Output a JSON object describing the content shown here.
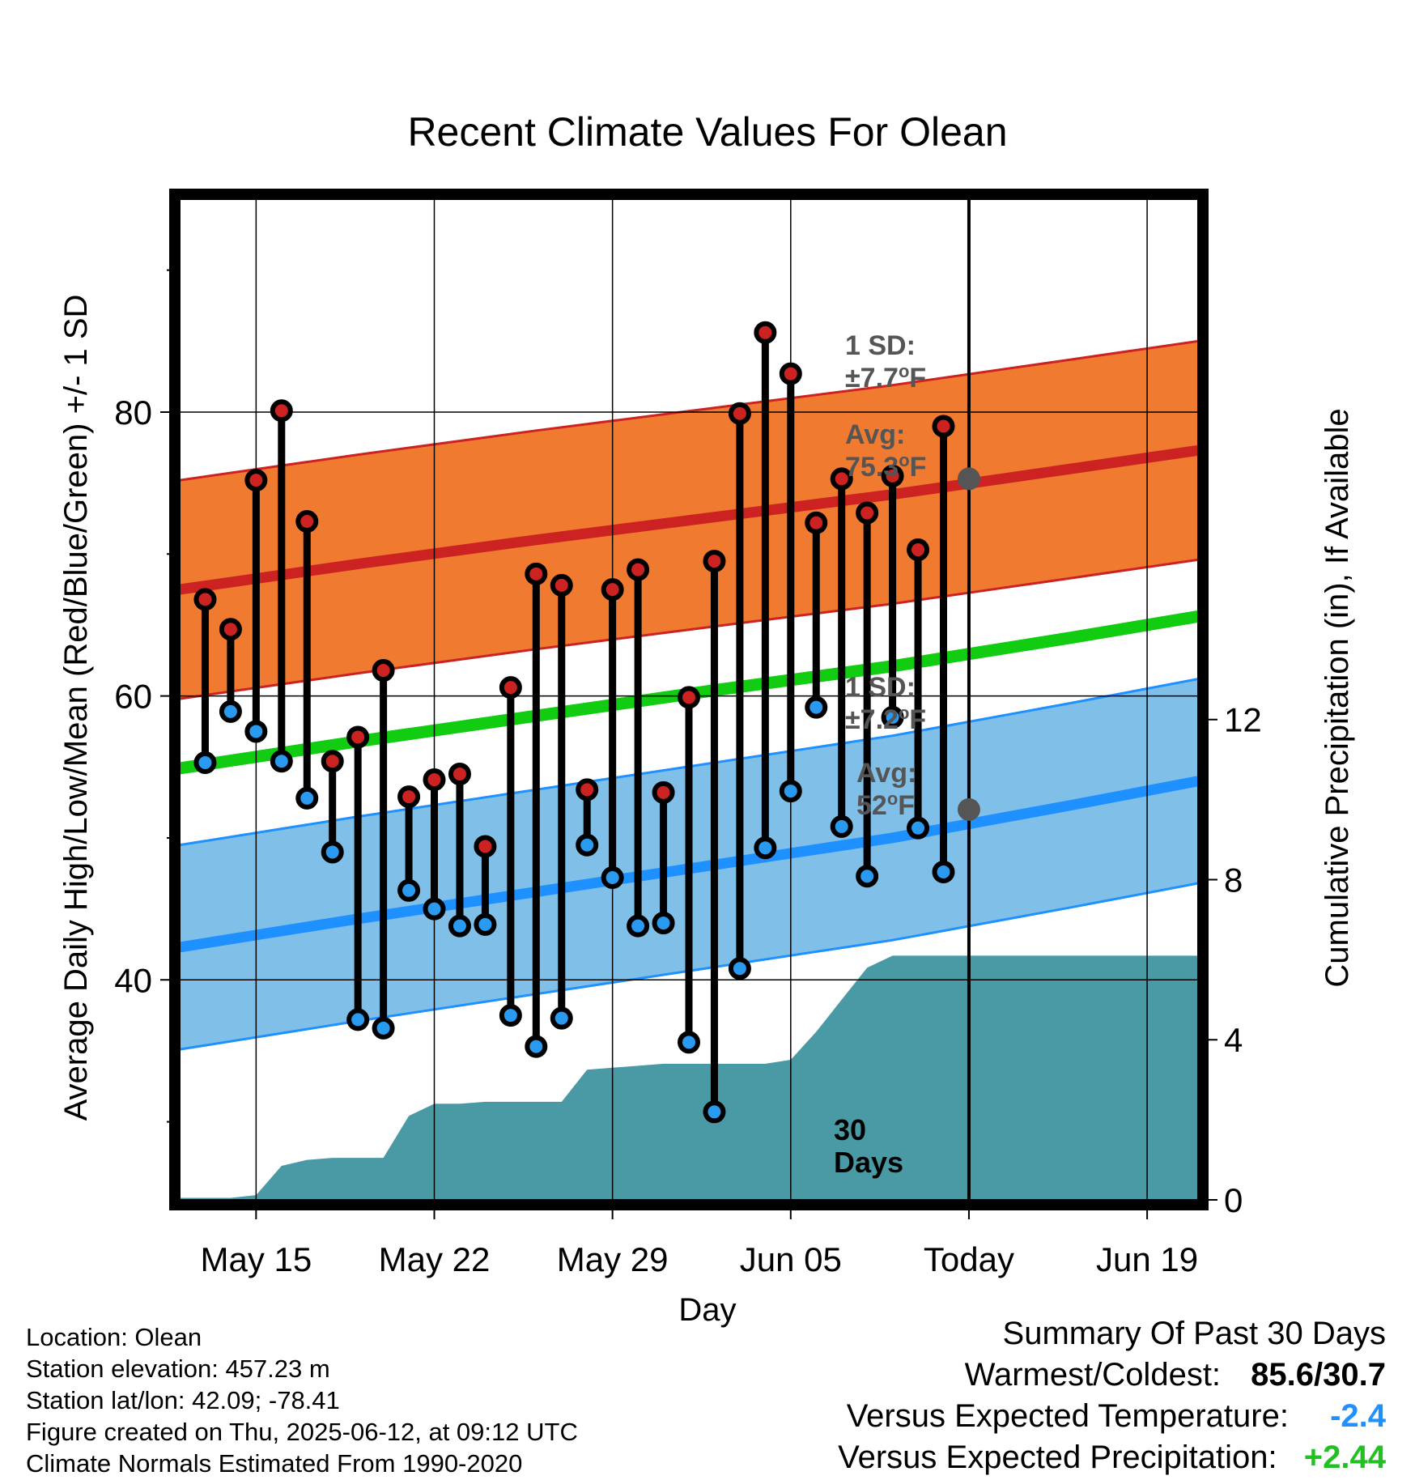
{
  "chart_data": {
    "type": "line",
    "title": "Recent Climate Values For Olean",
    "xlabel": "Day",
    "ylabel": "Average Daily High/Low/Mean (Red/Blue/Green) +/- 1 SD",
    "y2label": "Cumulative Precipitation (in), If Available",
    "x_range": [
      "2025-05-12",
      "2025-06-21"
    ],
    "ylim": [
      24.5,
      95
    ],
    "y2lim": [
      0,
      25
    ],
    "x_ticks": [
      {
        "date": "2025-05-15",
        "label": "May 15"
      },
      {
        "date": "2025-05-22",
        "label": "May 22"
      },
      {
        "date": "2025-05-29",
        "label": "May 29"
      },
      {
        "date": "2025-06-05",
        "label": "Jun 05"
      },
      {
        "date": "2025-06-12",
        "label": "Today"
      },
      {
        "date": "2025-06-19",
        "label": "Jun 19"
      }
    ],
    "y_ticks": [
      40,
      60,
      80
    ],
    "y_minor_ticks": [
      30,
      50,
      70,
      90
    ],
    "y2_ticks": [
      0,
      4,
      8,
      12
    ],
    "grid": true,
    "today": "2025-06-12",
    "today_label": "30\nDays",
    "normals": {
      "dates": [
        "2025-05-12",
        "2025-05-19",
        "2025-05-26",
        "2025-06-02",
        "2025-06-09",
        "2025-06-16",
        "2025-06-21"
      ],
      "high_mean": [
        67.5,
        69.3,
        71.0,
        72.6,
        74.2,
        76.0,
        77.3
      ],
      "high_sd": 7.7,
      "low_mean": [
        42.3,
        44.3,
        46.2,
        48.1,
        50.0,
        52.3,
        54.0
      ],
      "low_sd": 7.2,
      "mean": [
        54.9,
        56.8,
        58.6,
        60.4,
        62.1,
        64.1,
        65.6
      ]
    },
    "annotations": {
      "high_sd": "1 SD:\n±7.7°F",
      "high_avg": "Avg:\n75.3°F",
      "high_avg_value": 75.3,
      "low_sd": "1 SD:\n±7.2°F",
      "low_avg": "Avg:\n52°F",
      "low_avg_value": 52
    },
    "series": [
      {
        "name": "High",
        "color": "#c8102e",
        "x": [
          "2025-05-13",
          "2025-05-14",
          "2025-05-15",
          "2025-05-16",
          "2025-05-17",
          "2025-05-18",
          "2025-05-19",
          "2025-05-20",
          "2025-05-21",
          "2025-05-22",
          "2025-05-23",
          "2025-05-24",
          "2025-05-25",
          "2025-05-26",
          "2025-05-27",
          "2025-05-28",
          "2025-05-29",
          "2025-05-30",
          "2025-05-31",
          "2025-06-01",
          "2025-06-02",
          "2025-06-03",
          "2025-06-04",
          "2025-06-05",
          "2025-06-06",
          "2025-06-07",
          "2025-06-08",
          "2025-06-09",
          "2025-06-10",
          "2025-06-11"
        ],
        "values": [
          66.8,
          64.7,
          75.2,
          80.1,
          72.3,
          55.4,
          57.1,
          61.8,
          52.9,
          54.1,
          54.5,
          49.4,
          60.6,
          68.6,
          67.8,
          53.4,
          67.5,
          68.9,
          53.2,
          59.9,
          69.5,
          79.9,
          85.6,
          82.7,
          72.2,
          75.3,
          72.9,
          75.5,
          70.3,
          79.0
        ]
      },
      {
        "name": "Low",
        "color": "#1e90ff",
        "values": [
          55.3,
          58.9,
          57.5,
          55.4,
          52.8,
          49.0,
          37.2,
          36.6,
          46.3,
          45.0,
          43.8,
          43.9,
          37.5,
          35.3,
          37.3,
          49.5,
          47.2,
          43.8,
          44.0,
          35.6,
          30.7,
          40.8,
          49.3,
          53.3,
          59.2,
          50.8,
          47.3,
          58.5,
          50.7,
          47.6
        ]
      },
      {
        "name": "Cumulative Precipitation",
        "color": "#4a9aa5",
        "x": [
          "2025-05-12",
          "2025-05-14",
          "2025-05-15",
          "2025-05-16",
          "2025-05-17",
          "2025-05-18",
          "2025-05-19",
          "2025-05-20",
          "2025-05-21",
          "2025-05-22",
          "2025-05-23",
          "2025-05-24",
          "2025-05-25",
          "2025-05-26",
          "2025-05-27",
          "2025-05-28",
          "2025-05-29",
          "2025-05-30",
          "2025-05-31",
          "2025-06-01",
          "2025-06-02",
          "2025-06-03",
          "2025-06-04",
          "2025-06-05",
          "2025-06-06",
          "2025-06-07",
          "2025-06-08",
          "2025-06-09",
          "2025-06-10",
          "2025-06-11",
          "2025-06-21"
        ],
        "values": [
          0.05,
          0.05,
          0.12,
          0.85,
          1.0,
          1.05,
          1.05,
          1.05,
          2.1,
          2.4,
          2.4,
          2.45,
          2.45,
          2.45,
          2.45,
          3.25,
          3.3,
          3.35,
          3.4,
          3.4,
          3.4,
          3.4,
          3.4,
          3.5,
          4.2,
          5.0,
          5.8,
          6.1,
          6.1,
          6.1,
          6.1
        ]
      }
    ]
  },
  "info": {
    "location": "Location: Olean",
    "elevation": "Station elevation: 457.23 m",
    "latlon": "Station lat/lon: 42.09; -78.41",
    "created": "Figure created on Thu, 2025-06-12, at 09:12 UTC",
    "normals": "Climate Normals Estimated From 1990-2020"
  },
  "summary": {
    "title": "Summary Of Past 30 Days",
    "warm_cold_label": "Warmest/Coldest:",
    "warm_cold_value": "85.6/30.7",
    "temp_label": "Versus Expected Temperature:",
    "temp_value": "-2.4",
    "precip_label": "Versus Expected Precipitation:",
    "precip_value": "+2.44"
  },
  "colors": {
    "high_band": "#f07a30",
    "high_line": "#cc2222",
    "low_band": "#80c0e8",
    "low_line": "#1e90ff",
    "mean_line": "#11cc11",
    "precip_fill": "#4a9aa5",
    "high_marker": "#cc2222",
    "low_marker": "#2a9af0",
    "annotation": "#555555"
  }
}
